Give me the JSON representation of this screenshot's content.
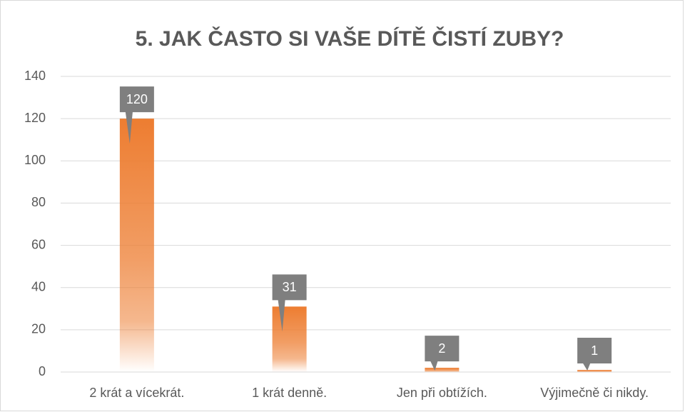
{
  "chart_data": {
    "type": "bar",
    "title": "5. JAK ČASTO SI VAŠE DÍTĚ ČISTÍ ZUBY?",
    "categories": [
      "2 krát a vícekrát.",
      "1 krát denně.",
      "Jen při obtížích.",
      "Výjimečně či nikdy."
    ],
    "values": [
      120,
      31,
      2,
      1
    ],
    "color": "#ED7D31",
    "ylim": [
      0,
      140
    ],
    "yticks": [
      0,
      20,
      40,
      60,
      80,
      100,
      120,
      140
    ],
    "grid": true
  }
}
